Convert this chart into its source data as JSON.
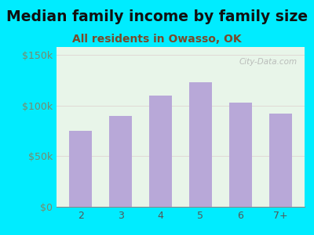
{
  "title": "Median family income by family size",
  "subtitle": "All residents in Owasso, OK",
  "categories": [
    "2",
    "3",
    "4",
    "5",
    "6",
    "7+"
  ],
  "values": [
    75000,
    90000,
    110000,
    123000,
    103000,
    92000
  ],
  "bar_color": "#b8a8d8",
  "title_color": "#111111",
  "subtitle_color": "#7a4a2a",
  "background_outer": "#00ecff",
  "background_inner": "#e8f5e9",
  "ytick_label_color": "#7a8a6a",
  "xtick_label_color": "#555555",
  "ytick_labels": [
    "$0",
    "$50k",
    "$100k",
    "$150k"
  ],
  "ytick_values": [
    0,
    50000,
    100000,
    150000
  ],
  "ylim": [
    0,
    158000
  ],
  "title_fontsize": 13.5,
  "subtitle_fontsize": 10,
  "tick_fontsize": 9,
  "watermark": "City-Data.com"
}
